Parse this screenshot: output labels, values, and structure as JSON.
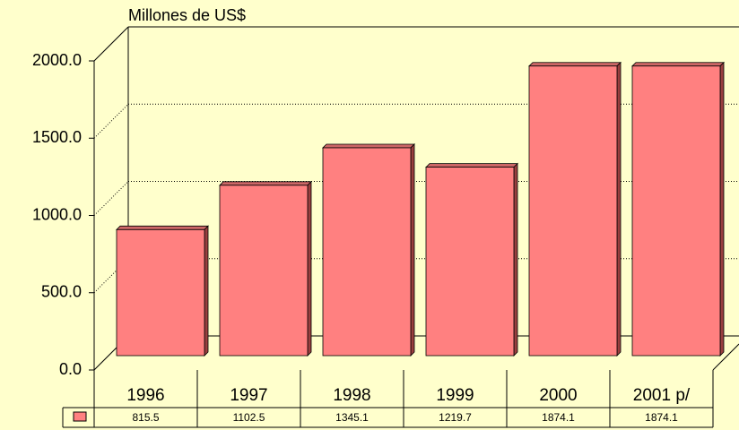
{
  "chart_data": {
    "type": "bar3d",
    "y_label": "Millones de US$",
    "categories": [
      "1996",
      "1997",
      "1998",
      "1999",
      "2000",
      "2001 p/"
    ],
    "values": [
      815.5,
      1102.5,
      1345.1,
      1219.7,
      1874.1,
      1874.1
    ],
    "color": "#FF8080",
    "ylim": [
      0,
      2000
    ],
    "yticks": [
      {
        "value": 0,
        "label": "0.0"
      },
      {
        "value": 500,
        "label": "500.0"
      },
      {
        "value": 1000,
        "label": "1000.0"
      },
      {
        "value": 1500,
        "label": "1500.0"
      },
      {
        "value": 2000,
        "label": "2000.0"
      }
    ],
    "grid": true,
    "data_table": true
  }
}
